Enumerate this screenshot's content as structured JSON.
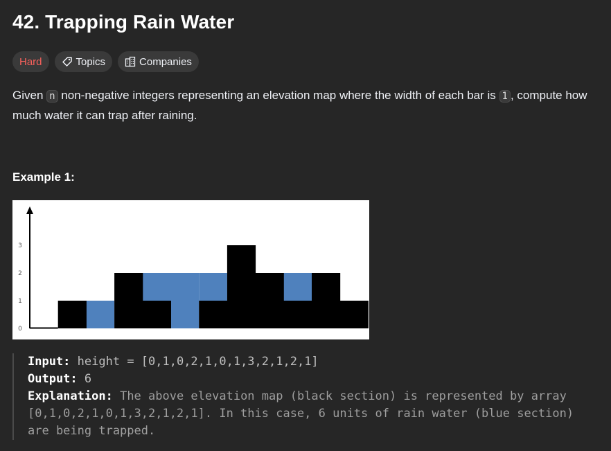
{
  "problem": {
    "title": "42. Trapping Rain Water",
    "difficulty": "Hard",
    "topics_label": "Topics",
    "companies_label": "Companies",
    "description": {
      "part1": "Given ",
      "code_n": "n",
      "part2": " non-negative integers representing an elevation map where the width of each bar is ",
      "code_1": "1",
      "part3": ", compute how much water it can trap after raining."
    }
  },
  "example": {
    "title": "Example 1:",
    "input_label": "Input:",
    "input_value": "height = [0,1,0,2,1,0,1,3,2,1,2,1]",
    "output_label": "Output:",
    "output_value": "6",
    "explanation_label": "Explanation:",
    "explanation_text": "The above elevation map (black section) is represented by array [0,1,0,2,1,0,1,3,2,1,2,1]. In this case, 6 units of rain water (blue section) are being trapped."
  },
  "chart_data": {
    "type": "bar",
    "values": [
      0,
      1,
      0,
      2,
      1,
      0,
      1,
      3,
      2,
      1,
      2,
      1
    ],
    "water": [
      0,
      0,
      1,
      0,
      1,
      2,
      1,
      0,
      0,
      1,
      0,
      0
    ],
    "y_ticks": [
      "0",
      "1",
      "2",
      "3"
    ],
    "ylim": [
      0,
      3
    ],
    "bar_color": "#000000",
    "water_color": "#4f81bd"
  },
  "colors": {
    "hard": "#f8615c",
    "tag_bg": "#3a3a3a",
    "page_bg": "#262626"
  },
  "icons": {
    "topics": "tag-icon",
    "companies": "building-icon"
  }
}
